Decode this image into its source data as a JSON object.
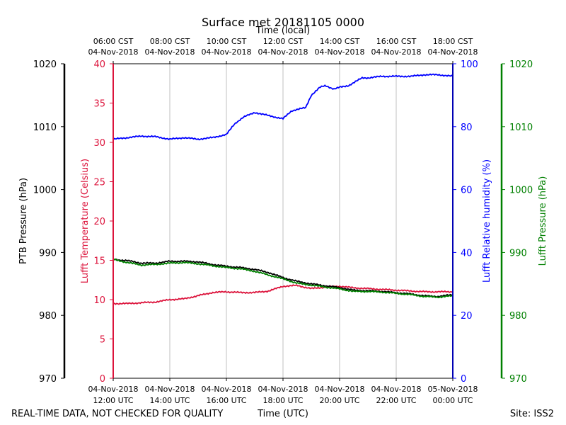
{
  "chart_data": {
    "type": "line",
    "title": "Surface met 20181105 0000",
    "top_xlabel": "Time (local)",
    "xlabel": "Time (UTC)",
    "xlim_hours": [
      12,
      24
    ],
    "x_ticks": [
      {
        "h": 12,
        "utc_date": "04-Nov-2018",
        "utc_time": "12:00 UTC"
      },
      {
        "h": 14,
        "utc_date": "04-Nov-2018",
        "utc_time": "14:00 UTC"
      },
      {
        "h": 16,
        "utc_date": "04-Nov-2018",
        "utc_time": "16:00 UTC"
      },
      {
        "h": 18,
        "utc_date": "04-Nov-2018",
        "utc_time": "18:00 UTC"
      },
      {
        "h": 20,
        "utc_date": "04-Nov-2018",
        "utc_time": "20:00 UTC"
      },
      {
        "h": 22,
        "utc_date": "04-Nov-2018",
        "utc_time": "22:00 UTC"
      },
      {
        "h": 24,
        "utc_date": "05-Nov-2018",
        "utc_time": "00:00 UTC"
      }
    ],
    "top_ticks": [
      {
        "h": 12,
        "local_time": "06:00 CST",
        "local_date": "04-Nov-2018"
      },
      {
        "h": 14,
        "local_time": "08:00 CST",
        "local_date": "04-Nov-2018"
      },
      {
        "h": 16,
        "local_time": "10:00 CST",
        "local_date": "04-Nov-2018"
      },
      {
        "h": 18,
        "local_time": "12:00 CST",
        "local_date": "04-Nov-2018"
      },
      {
        "h": 20,
        "local_time": "14:00 CST",
        "local_date": "04-Nov-2018"
      },
      {
        "h": 22,
        "local_time": "16:00 CST",
        "local_date": "04-Nov-2018"
      },
      {
        "h": 24,
        "local_time": "18:00 CST",
        "local_date": "04-Nov-2018"
      }
    ],
    "axes": {
      "temp": {
        "label": "Lufft Temperature (Celsius)",
        "lim": [
          0,
          40
        ],
        "ticks": [
          0,
          5,
          10,
          15,
          20,
          25,
          30,
          35,
          40
        ],
        "color": "#dc143c"
      },
      "ptb": {
        "label": "PTB Pressure (hPa)",
        "lim": [
          970,
          1020
        ],
        "ticks": [
          970,
          980,
          990,
          1000,
          1010,
          1020
        ],
        "color": "#000000"
      },
      "rh": {
        "label": "Lufft Relative humidity (%)",
        "lim": [
          0,
          100
        ],
        "ticks": [
          0,
          20,
          40,
          60,
          80,
          100
        ],
        "color": "#0000ff"
      },
      "lufft_p": {
        "label": "Lufft Pressure (hPa)",
        "lim": [
          970,
          1020
        ],
        "ticks": [
          970,
          980,
          990,
          1000,
          1010,
          1020
        ],
        "color": "#008000"
      }
    },
    "series": [
      {
        "name": "Lufft Temperature",
        "axis": "temp",
        "color": "#dc143c",
        "x": [
          12.0,
          12.5,
          13.0,
          13.5,
          14.0,
          14.5,
          15.0,
          15.5,
          16.0,
          16.5,
          17.0,
          17.5,
          18.0,
          18.5,
          19.0,
          19.5,
          20.0,
          20.5,
          21.0,
          21.5,
          22.0,
          22.5,
          23.0,
          23.5,
          24.0
        ],
        "y": [
          9.5,
          9.5,
          9.6,
          9.7,
          10.0,
          10.1,
          10.5,
          10.9,
          11.0,
          10.9,
          10.9,
          11.1,
          11.7,
          11.8,
          11.4,
          11.6,
          11.7,
          11.5,
          11.4,
          11.3,
          11.2,
          11.1,
          11.0,
          11.0,
          11.0
        ]
      },
      {
        "name": "PTB Pressure",
        "axis": "ptb",
        "color": "#000000",
        "x": [
          12.0,
          12.5,
          13.0,
          13.5,
          14.0,
          14.5,
          15.0,
          15.5,
          16.0,
          16.5,
          17.0,
          17.5,
          18.0,
          18.5,
          19.0,
          19.5,
          20.0,
          20.5,
          21.0,
          21.5,
          22.0,
          22.5,
          23.0,
          23.5,
          24.0
        ],
        "y": [
          988.9,
          988.7,
          988.3,
          988.3,
          988.6,
          988.6,
          988.5,
          988.1,
          987.8,
          987.6,
          987.3,
          986.8,
          986.0,
          985.4,
          985.0,
          984.7,
          984.4,
          984.0,
          983.9,
          983.8,
          983.6,
          983.4,
          983.1,
          983.0,
          983.3
        ]
      },
      {
        "name": "Lufft Pressure",
        "axis": "lufft_p",
        "color": "#008000",
        "x": [
          12.0,
          12.5,
          13.0,
          13.5,
          14.0,
          14.5,
          15.0,
          15.5,
          16.0,
          16.5,
          17.0,
          17.5,
          18.0,
          18.5,
          19.0,
          19.5,
          20.0,
          20.5,
          21.0,
          21.5,
          22.0,
          22.5,
          23.0,
          23.5,
          24.0
        ],
        "y": [
          988.9,
          988.4,
          988.0,
          988.1,
          988.3,
          988.4,
          988.2,
          987.9,
          987.6,
          987.4,
          987.0,
          986.4,
          985.8,
          985.1,
          984.8,
          984.5,
          984.2,
          983.8,
          983.8,
          983.7,
          983.5,
          983.3,
          983.0,
          982.9,
          983.1
        ]
      },
      {
        "name": "Lufft Relative humidity",
        "axis": "rh",
        "color": "#0000ff",
        "x": [
          12.0,
          12.5,
          13.0,
          13.5,
          14.0,
          14.5,
          15.0,
          15.5,
          16.0,
          16.3,
          16.6,
          17.0,
          17.5,
          18.0,
          18.3,
          18.5,
          18.8,
          19.0,
          19.3,
          19.5,
          19.8,
          20.0,
          20.3,
          20.5,
          20.8,
          21.0,
          21.5,
          22.0,
          22.5,
          23.0,
          23.5,
          24.0
        ],
        "y": [
          76.0,
          76.5,
          77.0,
          76.8,
          76.0,
          76.5,
          76.0,
          76.5,
          77.5,
          81.0,
          83.0,
          84.5,
          83.5,
          82.5,
          85.0,
          85.5,
          86.0,
          90.0,
          92.5,
          93.0,
          92.0,
          92.5,
          93.0,
          94.0,
          95.5,
          95.5,
          96.0,
          96.0,
          96.0,
          96.5,
          96.5,
          96.0
        ]
      }
    ]
  },
  "footer": {
    "quality_note": "REAL-TIME DATA, NOT CHECKED FOR QUALITY",
    "site": "Site: ISS2"
  }
}
